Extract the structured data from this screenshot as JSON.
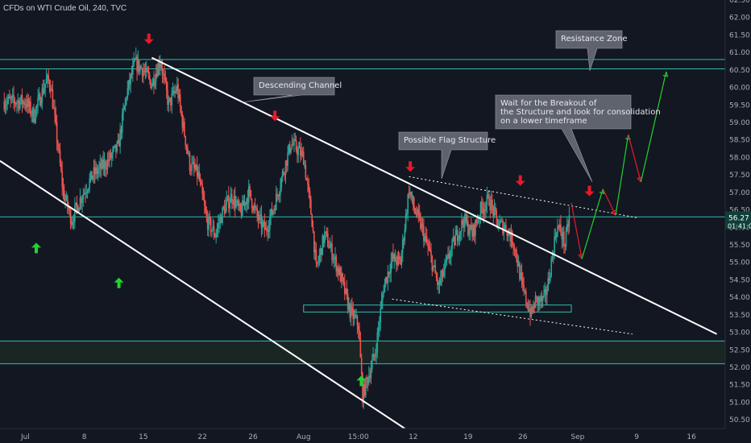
{
  "title": "CFDs on WTI Crude Oil, 240, TVC",
  "chart_data": {
    "type": "candlestick",
    "ylim": [
      50.25,
      62.5
    ],
    "y_ticks": [
      62.5,
      62.0,
      61.5,
      61.0,
      60.5,
      60.0,
      59.5,
      59.0,
      58.5,
      58.0,
      57.5,
      57.0,
      56.5,
      56.0,
      55.5,
      55.0,
      54.5,
      54.0,
      53.5,
      53.0,
      52.5,
      52.0,
      51.5,
      51.0,
      50.5
    ],
    "y_tick_labels": [
      "62.50",
      "62.00",
      "61.50",
      "61.00",
      "60.50",
      "60.00",
      "59.50",
      "59.00",
      "58.50",
      "58.00",
      "57.50",
      "57.00",
      "56.50",
      "56.00",
      "55.50",
      "55.00",
      "54.50",
      "54.00",
      "53.50",
      "53.00",
      "52.50",
      "52.00",
      "51.50",
      "51.00",
      "50.50"
    ],
    "x_ticks": [
      "Jul",
      "8",
      "15",
      "22",
      "26",
      "Aug",
      "15:00",
      "12",
      "19",
      "26",
      "Sep",
      "9",
      "16"
    ],
    "x_tick_index": [
      0,
      14,
      28,
      42,
      54,
      66,
      79,
      92,
      105,
      118,
      131,
      145,
      158
    ],
    "x_index_range": [
      -6,
      166
    ],
    "last_price": {
      "value": 56.27,
      "label": "56.27",
      "countdown": "01:41:00"
    },
    "price_path": [
      [
        0,
        59.6
      ],
      [
        2,
        59.2
      ],
      [
        5,
        60.2
      ],
      [
        6,
        60.1
      ],
      [
        9,
        57.0
      ],
      [
        11,
        56.2
      ],
      [
        13,
        56.8
      ],
      [
        16,
        57.5
      ],
      [
        19,
        57.8
      ],
      [
        22,
        58.3
      ],
      [
        24,
        59.8
      ],
      [
        26,
        60.7
      ],
      [
        28,
        60.5
      ],
      [
        30,
        60.1
      ],
      [
        32,
        60.8
      ],
      [
        34,
        59.5
      ],
      [
        36,
        60.0
      ],
      [
        37,
        59.2
      ],
      [
        39,
        57.8
      ],
      [
        41,
        57.5
      ],
      [
        43,
        56.2
      ],
      [
        45,
        55.8
      ],
      [
        47,
        56.5
      ],
      [
        49,
        56.9
      ],
      [
        51,
        56.4
      ],
      [
        53,
        57.0
      ],
      [
        55,
        56.3
      ],
      [
        57,
        55.9
      ],
      [
        59,
        56.6
      ],
      [
        61,
        57.5
      ],
      [
        63,
        58.4
      ],
      [
        64,
        58.3
      ],
      [
        66,
        58.0
      ],
      [
        68,
        56.2
      ],
      [
        69,
        54.8
      ],
      [
        71,
        55.8
      ],
      [
        73,
        55.2
      ],
      [
        75,
        54.5
      ],
      [
        77,
        53.6
      ],
      [
        79,
        53.2
      ],
      [
        80,
        51.2
      ],
      [
        81,
        51.6
      ],
      [
        83,
        52.4
      ],
      [
        85,
        54.3
      ],
      [
        87,
        55.1
      ],
      [
        89,
        55.0
      ],
      [
        91,
        57.1
      ],
      [
        92,
        56.6
      ],
      [
        94,
        56.0
      ],
      [
        96,
        55.2
      ],
      [
        98,
        54.3
      ],
      [
        100,
        55.0
      ],
      [
        102,
        55.7
      ],
      [
        104,
        56.2
      ],
      [
        106,
        55.8
      ],
      [
        108,
        56.5
      ],
      [
        110,
        56.8
      ],
      [
        112,
        56.1
      ],
      [
        114,
        56.0
      ],
      [
        116,
        55.5
      ],
      [
        118,
        54.2
      ],
      [
        120,
        53.5
      ],
      [
        121,
        53.9
      ],
      [
        123,
        53.9
      ],
      [
        124,
        54.4
      ],
      [
        126,
        56.0
      ],
      [
        127,
        55.9
      ],
      [
        128,
        55.5
      ],
      [
        129,
        56.3
      ]
    ],
    "annotations": {
      "descending_channel": "Descending Channel",
      "possible_flag": "Possible Flag Structure",
      "resistance_zone": "Resistance Zone",
      "breakout_note": "Wait for the Breakout of the Structure and look for consolidation on a lower timeframe"
    },
    "horizontal_levels": [
      60.8,
      60.53,
      56.3,
      52.75,
      52.1
    ],
    "support_box": [
      53.58,
      53.78
    ],
    "colors": {
      "background": "#131722",
      "up": "#26a69a",
      "down": "#ef5350",
      "level": "#2bbfae",
      "channel": "#ffffff",
      "arrow_up": "#22d32e",
      "arrow_down": "#e8192c",
      "callout_bg": "#5f636d",
      "zone_fill": "#1b2a26"
    }
  }
}
